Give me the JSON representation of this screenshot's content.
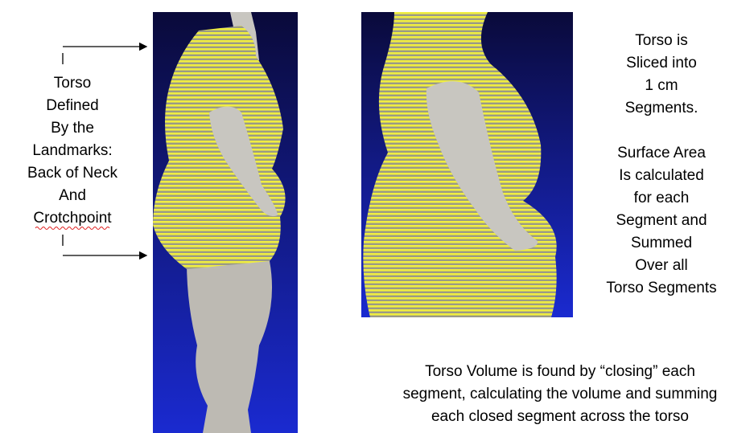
{
  "left_label": {
    "lines": [
      "Torso",
      "Defined",
      "By the",
      "Landmarks:",
      "Back of Neck",
      "And",
      "Crotchpoint"
    ]
  },
  "right_label": {
    "lines": [
      "Torso is",
      "Sliced into",
      "1 cm",
      "Segments.",
      "Surface Area",
      "Is calculated",
      "for each",
      "Segment and",
      "Summed",
      "Over all",
      "Torso Segments"
    ]
  },
  "bottom_caption": {
    "lines": [
      "Torso Volume is found by “closing” each",
      "segment, calculating the volume and summing",
      "each closed segment across the torso"
    ]
  }
}
